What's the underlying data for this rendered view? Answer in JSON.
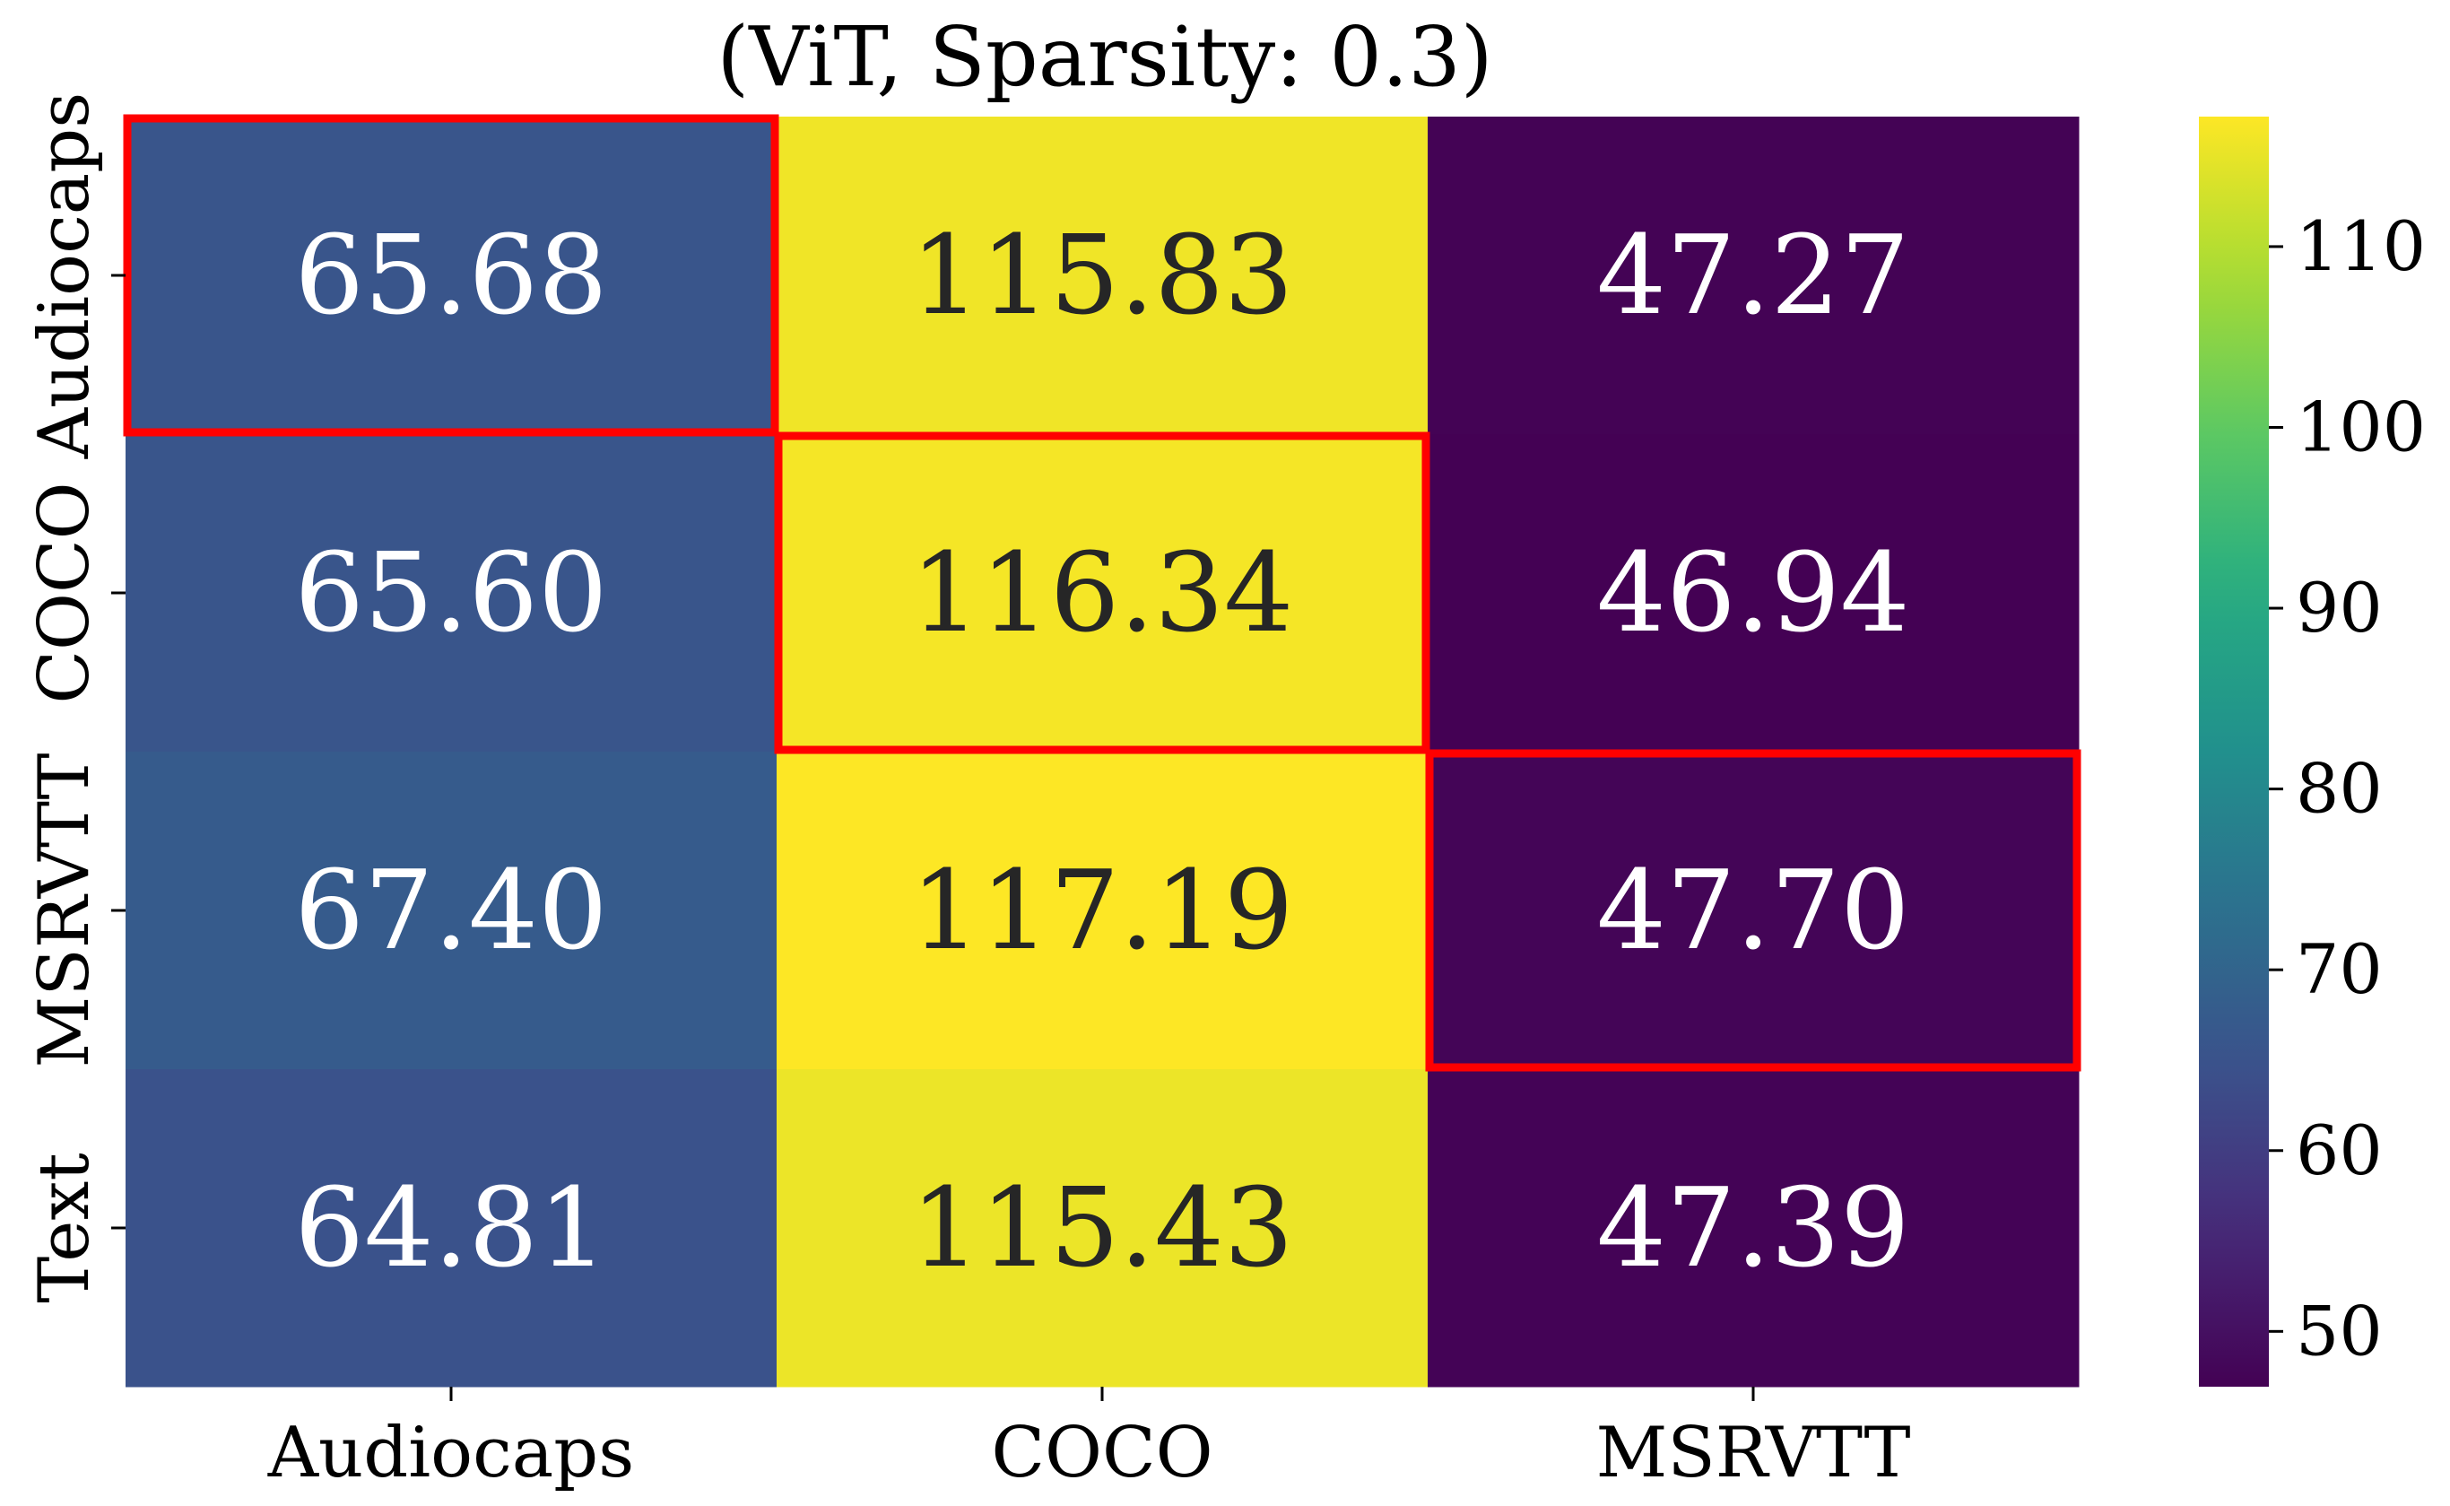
{
  "chart_data": {
    "type": "heatmap",
    "title": "(ViT, Sparsity: 0.3)",
    "xlabel": "",
    "ylabel": "",
    "x_categories": [
      "Audiocaps",
      "COCO",
      "MSRVTT"
    ],
    "y_categories": [
      "Audiocaps",
      "COCO",
      "MSRVTT",
      "Text"
    ],
    "values": [
      [
        65.68,
        115.83,
        47.27
      ],
      [
        65.6,
        116.34,
        46.94
      ],
      [
        67.4,
        117.19,
        47.7
      ],
      [
        64.81,
        115.43,
        47.39
      ]
    ],
    "cell_labels": [
      [
        "65.68",
        "115.83",
        "47.27"
      ],
      [
        "65.60",
        "116.34",
        "46.94"
      ],
      [
        "67.40",
        "117.19",
        "47.70"
      ],
      [
        "64.81",
        "115.43",
        "47.39"
      ]
    ],
    "highlighted_cells": [
      [
        0,
        0
      ],
      [
        1,
        1
      ],
      [
        2,
        2
      ]
    ],
    "highlight_color": "#ff0000",
    "colormap": "viridis",
    "colorbar": {
      "vmin": 46.94,
      "vmax": 117.19,
      "ticks": [
        50,
        60,
        70,
        80,
        90,
        100,
        110
      ],
      "tick_labels": [
        "50",
        "60",
        "70",
        "80",
        "90",
        "100",
        "110"
      ]
    }
  }
}
